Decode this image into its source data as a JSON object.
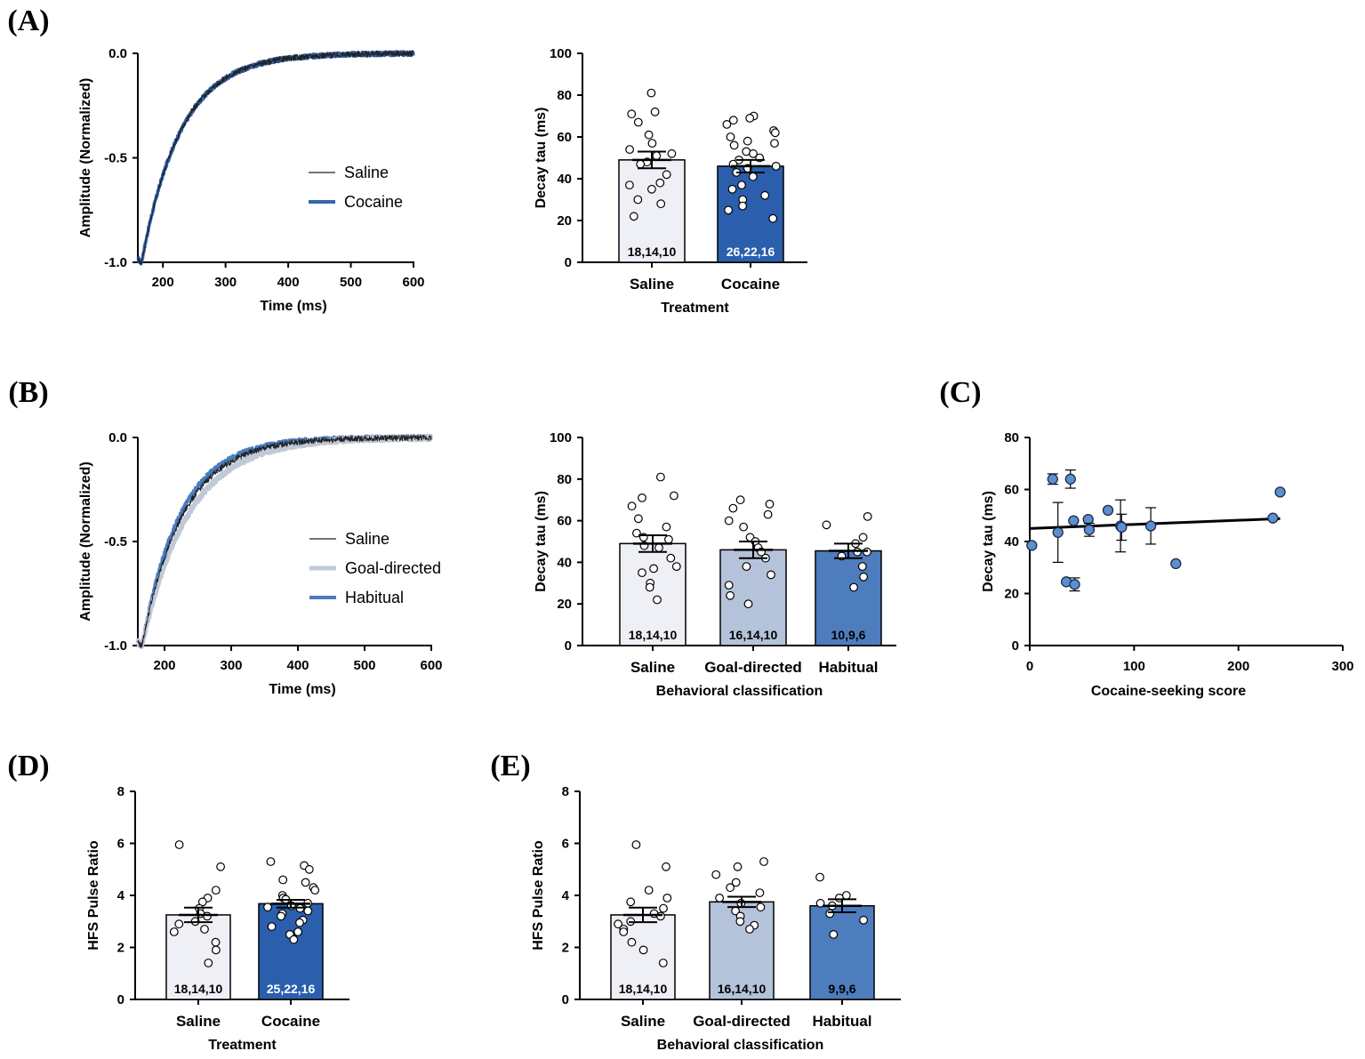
{
  "chart_data": [
    {
      "panel": "(A)",
      "type": "line",
      "xlabel": "Time (ms)",
      "ylabel": "Amplitude (Normalized)",
      "xlim": [
        160,
        600
      ],
      "ylim": [
        -1.0,
        0.0
      ],
      "xticks": [
        "200",
        "300",
        "400",
        "500",
        "600"
      ],
      "yticks": [
        "0.0",
        "-0.5",
        "-1.0"
      ],
      "legend": [
        "Saline",
        "Cocaine"
      ],
      "series": [
        {
          "name": "Saline",
          "color": "#222222",
          "tau": 63
        },
        {
          "name": "Cocaine",
          "color": "#3366b0",
          "tau": 63
        }
      ]
    },
    {
      "panel": "A-bar",
      "type": "bar",
      "xlabel": "Treatment",
      "ylabel": "Decay tau (ms)",
      "ylim": [
        0,
        100
      ],
      "yticks": [
        "0",
        "20",
        "40",
        "60",
        "80",
        "100"
      ],
      "categories": [
        "Saline",
        "Cocaine"
      ],
      "values": [
        49,
        46
      ],
      "sem": [
        4,
        3
      ],
      "n_labels": [
        "18,14,10",
        "26,22,16"
      ],
      "colors": [
        "#eef0f5",
        "#2b5fae"
      ],
      "points": [
        [
          81,
          72,
          71,
          67,
          61,
          57,
          54,
          52,
          51,
          48,
          47,
          42,
          38,
          37,
          35,
          30,
          28,
          22
        ],
        [
          70,
          69,
          68,
          66,
          63,
          62,
          60,
          58,
          57,
          56,
          53,
          52,
          50,
          49,
          47,
          46,
          45,
          43,
          41,
          37,
          35,
          32,
          30,
          27,
          25,
          21
        ]
      ]
    },
    {
      "panel": "(B)",
      "type": "line",
      "xlabel": "Time (ms)",
      "ylabel": "Amplitude (Normalized)",
      "xlim": [
        160,
        600
      ],
      "ylim": [
        -1.0,
        0.0
      ],
      "xticks": [
        "200",
        "300",
        "400",
        "500",
        "600"
      ],
      "yticks": [
        "0.0",
        "-0.5",
        "-1.0"
      ],
      "legend": [
        "Saline",
        "Goal-directed",
        "Habitual"
      ],
      "series": [
        {
          "name": "Saline",
          "color": "#222222",
          "tau": 62
        },
        {
          "name": "Goal-directed",
          "color": "#c0c9d8",
          "tau": 70
        },
        {
          "name": "Habitual",
          "color": "#4a7cc0",
          "tau": 58
        }
      ]
    },
    {
      "panel": "B-bar",
      "type": "bar",
      "xlabel": "Behavioral classification",
      "ylabel": "Decay tau (ms)",
      "ylim": [
        0,
        100
      ],
      "yticks": [
        "0",
        "20",
        "40",
        "60",
        "80",
        "100"
      ],
      "categories": [
        "Saline",
        "Goal-directed",
        "Habitual"
      ],
      "values": [
        49,
        46,
        45.5
      ],
      "sem": [
        4,
        4,
        3.5
      ],
      "n_labels": [
        "18,14,10",
        "16,14,10",
        "10,9,6"
      ],
      "colors": [
        "#eef0f5",
        "#b4c3d9",
        "#4d7dbd"
      ],
      "points": [
        [
          81,
          72,
          71,
          67,
          61,
          57,
          54,
          52,
          51,
          48,
          47,
          42,
          38,
          37,
          35,
          30,
          28,
          22
        ],
        [
          70,
          68,
          66,
          63,
          60,
          57,
          52,
          50,
          47,
          45,
          42,
          38,
          34,
          29,
          24,
          20
        ],
        [
          62,
          58,
          52,
          49,
          45,
          43,
          38,
          33,
          28,
          45
        ]
      ]
    },
    {
      "panel": "(C)",
      "type": "scatter",
      "xlabel": "Cocaine-seeking score",
      "ylabel": "Decay tau (ms)",
      "xlim": [
        0,
        300
      ],
      "ylim": [
        0,
        80
      ],
      "xticks": [
        "0",
        "100",
        "200",
        "300"
      ],
      "yticks": [
        "0",
        "20",
        "40",
        "60",
        "80"
      ],
      "points": [
        {
          "x": 2,
          "y": 38.5
        },
        {
          "x": 22,
          "y": 64,
          "err": 2
        },
        {
          "x": 27,
          "y": 43.5,
          "err": 11.5
        },
        {
          "x": 35,
          "y": 24.5
        },
        {
          "x": 39,
          "y": 64,
          "err": 3.5
        },
        {
          "x": 42,
          "y": 48
        },
        {
          "x": 43,
          "y": 23.5,
          "err": 2.5
        },
        {
          "x": 56,
          "y": 48.5
        },
        {
          "x": 57,
          "y": 44.5,
          "err": 2.5
        },
        {
          "x": 75,
          "y": 52
        },
        {
          "x": 87,
          "y": 46,
          "err": 10
        },
        {
          "x": 88,
          "y": 45.5,
          "err": 5
        },
        {
          "x": 116,
          "y": 46,
          "err": 7
        },
        {
          "x": 140,
          "y": 31.5
        },
        {
          "x": 233,
          "y": 49
        },
        {
          "x": 240,
          "y": 59
        }
      ],
      "fit": {
        "x": [
          0,
          240
        ],
        "y": [
          45,
          48.8
        ]
      }
    },
    {
      "panel": "(D)",
      "type": "bar",
      "xlabel": "Treatment",
      "ylabel": "HFS Pulse Ratio",
      "ylim": [
        0,
        8
      ],
      "yticks": [
        "0",
        "2",
        "4",
        "6",
        "8"
      ],
      "categories": [
        "Saline",
        "Cocaine"
      ],
      "values": [
        3.25,
        3.68
      ],
      "sem": [
        0.28,
        0.15
      ],
      "n_labels": [
        "18,14,10",
        "25,22,16"
      ],
      "colors": [
        "#eef0f5",
        "#2b5fae"
      ],
      "points": [
        [
          5.95,
          5.1,
          4.2,
          3.9,
          3.75,
          3.5,
          3.3,
          3.2,
          3.0,
          2.9,
          2.7,
          2.6,
          2.2,
          1.9,
          1.4
        ],
        [
          5.3,
          5.15,
          5.0,
          4.6,
          4.5,
          4.3,
          4.2,
          4.0,
          3.9,
          3.85,
          3.7,
          3.6,
          3.55,
          3.5,
          3.4,
          3.3,
          3.2,
          3.05,
          2.95,
          2.8,
          2.6,
          2.5,
          2.3
        ]
      ]
    },
    {
      "panel": "(E)",
      "type": "bar",
      "xlabel": "Behavioral classification",
      "ylabel": "HFS Pulse Ratio",
      "ylim": [
        0,
        8
      ],
      "yticks": [
        "0",
        "2",
        "4",
        "6",
        "8"
      ],
      "categories": [
        "Saline",
        "Goal-directed",
        "Habitual"
      ],
      "values": [
        3.25,
        3.75,
        3.6
      ],
      "sem": [
        0.28,
        0.2,
        0.25
      ],
      "n_labels": [
        "18,14,10",
        "16,14,10",
        "9,9,6"
      ],
      "colors": [
        "#eef0f5",
        "#b4c3d9",
        "#4d7dbd"
      ],
      "points": [
        [
          5.95,
          5.1,
          4.2,
          3.9,
          3.75,
          3.5,
          3.3,
          3.2,
          3.0,
          2.9,
          2.7,
          2.6,
          2.2,
          1.9,
          1.4
        ],
        [
          5.3,
          5.1,
          4.8,
          4.5,
          4.3,
          4.1,
          3.9,
          3.7,
          3.55,
          3.4,
          3.2,
          3.0,
          2.85,
          2.7
        ],
        [
          4.7,
          4.0,
          3.9,
          3.7,
          3.6,
          3.3,
          3.05,
          2.5
        ]
      ]
    }
  ]
}
